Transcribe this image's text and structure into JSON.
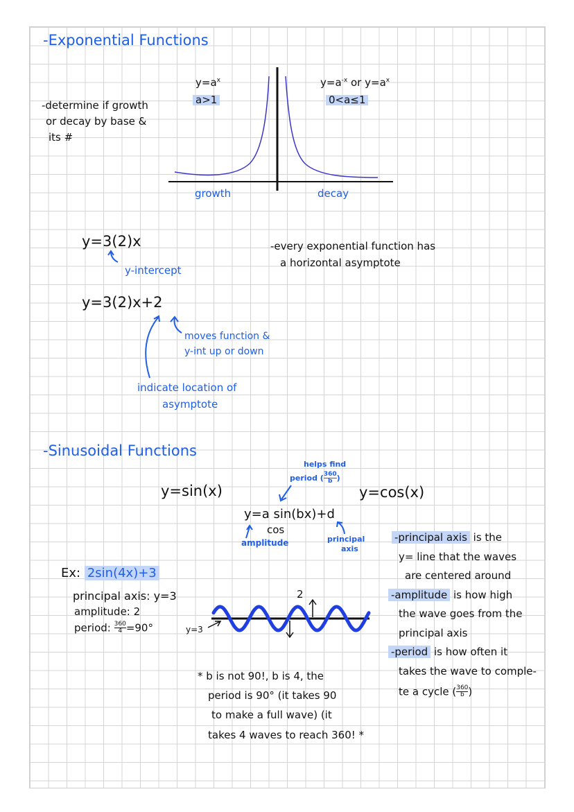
{
  "colors": {
    "ink": "#111111",
    "blue": "#1f5ee6",
    "highlight": "#c3d6f7",
    "curve": "#3a35c8"
  },
  "exponential": {
    "heading": "-Exponential Functions",
    "growth_eq": "y=a",
    "growth_exp": "x",
    "growth_cond": "a>1",
    "decay_eq_a": "y=a",
    "decay_exp_a": "-x",
    "decay_or": "or",
    "decay_eq_b": "y=a",
    "decay_exp_b": "x",
    "decay_cond": "0<a≤1",
    "note": [
      "-determine if growth",
      "or decay by base &",
      "its #"
    ],
    "growth_label": "growth",
    "decay_label": "decay",
    "eq1": "y=3(2)x",
    "y_intercept": "y-intercept",
    "eq2": "y=3(2)x+2",
    "moves": [
      "moves function &",
      "y-int up or down"
    ],
    "indicate": [
      "indicate location of",
      "asymptote"
    ],
    "asymptote_note": [
      "-every exponential function has",
      "a horizontal asymptote"
    ]
  },
  "sinusoidal": {
    "heading": "-Sinusoidal Functions",
    "helps": [
      "helps find",
      "period ("
    ],
    "helps_frac": {
      "num": "360",
      "den": "b"
    },
    "helps_close": ")",
    "sin": "y=sin(x)",
    "cos": "y=cos(x)",
    "general": "y=a sin(bx)+d",
    "general_cos": "cos",
    "amplitude_label": "amplitude",
    "principal_label": [
      "principal",
      "axis"
    ],
    "example_prefix": "Ex:",
    "example": "2sin(4x)+3",
    "ex_principal": "principal axis: y=3",
    "ex_amplitude": "amplitude: 2",
    "ex_period_prefix": "period:",
    "ex_period_frac": {
      "num": "360",
      "den": "4"
    },
    "ex_period_result": "=90°",
    "wave_amp_label": "2",
    "wave_axis_label": "y=3",
    "star_note": [
      "* b is not 90!, b is 4, the",
      "period is 90° (it takes 90",
      "to make a full wave) (it",
      "takes 4 waves to reach 360! *"
    ],
    "definitions": [
      {
        "term": "-principal axis",
        "rest": " is the"
      },
      {
        "term": "",
        "rest": "y= line that the waves"
      },
      {
        "term": "",
        "rest": "are centered around"
      },
      {
        "term": "-amplitude",
        "rest": " is how high"
      },
      {
        "term": "",
        "rest": "the wave goes from the"
      },
      {
        "term": "",
        "rest": "principal axis"
      },
      {
        "term": "-period",
        "rest": " is how often it"
      },
      {
        "term": "",
        "rest": "takes the wave to comple-"
      },
      {
        "term": "",
        "rest": "te a cycle ("
      }
    ],
    "def_frac": {
      "num": "360",
      "den": "b"
    },
    "def_close": ")"
  }
}
